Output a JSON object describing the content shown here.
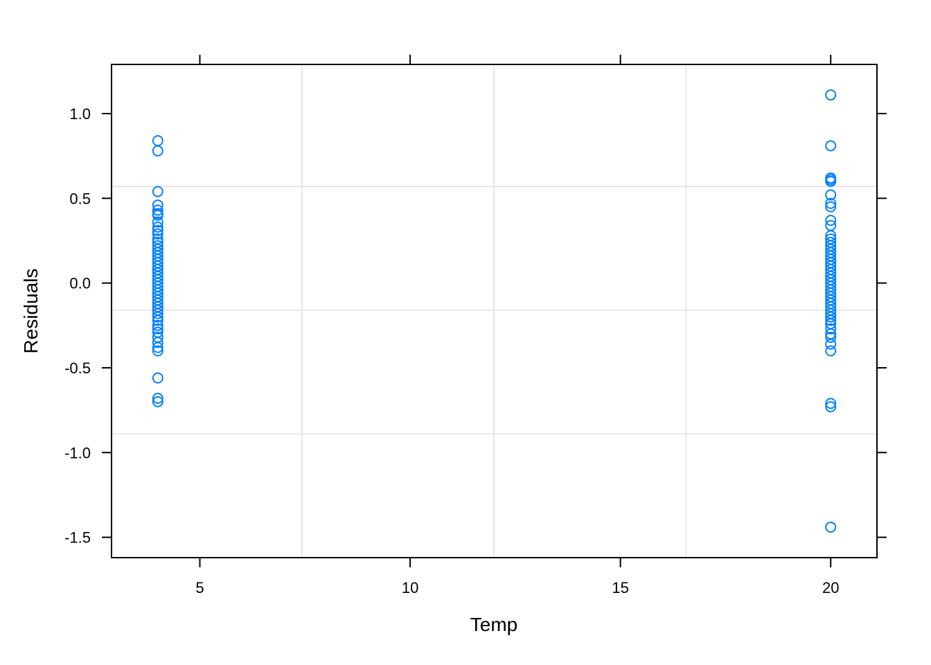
{
  "chart_data": {
    "type": "scatter",
    "title": "",
    "xlabel": "Temp",
    "ylabel": "Residuals",
    "xlim": [
      2.9,
      21.1
    ],
    "ylim": [
      -1.62,
      1.29
    ],
    "x_ticks": [
      5,
      10,
      15,
      20
    ],
    "x_tick_labels": [
      "5",
      "10",
      "15",
      "20"
    ],
    "y_ticks": [
      -1.5,
      -1.0,
      -0.5,
      0.0,
      0.5,
      1.0
    ],
    "y_tick_labels": [
      "-1.5",
      "-1.0",
      "-0.5",
      "0.0",
      "0.5",
      "1.0"
    ],
    "grid": true,
    "grid_lines": {
      "x": [
        7.43,
        11.99,
        16.56
      ],
      "y": [
        -0.89,
        -0.16,
        0.57
      ]
    },
    "marker": "open-circle",
    "colors": {
      "points": "#0080FF",
      "grid": "#E6E6E6",
      "frame": "#000000"
    },
    "series": [
      {
        "x": 4,
        "values": [
          0.84,
          0.78,
          0.54,
          0.46,
          0.43,
          0.41,
          0.4,
          0.36,
          0.33,
          0.31,
          0.29,
          0.26,
          0.24,
          0.22,
          0.2,
          0.18,
          0.16,
          0.14,
          0.12,
          0.1,
          0.08,
          0.06,
          0.04,
          0.02,
          0.0,
          -0.02,
          -0.04,
          -0.06,
          -0.08,
          -0.1,
          -0.12,
          -0.14,
          -0.16,
          -0.18,
          -0.2,
          -0.22,
          -0.25,
          -0.27,
          -0.29,
          -0.32,
          -0.35,
          -0.38,
          -0.4,
          -0.56,
          -0.68,
          -0.7
        ]
      },
      {
        "x": 20,
        "values": [
          1.11,
          0.81,
          0.62,
          0.61,
          0.6,
          0.52,
          0.47,
          0.45,
          0.37,
          0.34,
          0.28,
          0.26,
          0.24,
          0.22,
          0.2,
          0.18,
          0.16,
          0.14,
          0.12,
          0.1,
          0.08,
          0.06,
          0.04,
          0.02,
          0.0,
          -0.02,
          -0.04,
          -0.06,
          -0.08,
          -0.1,
          -0.12,
          -0.14,
          -0.16,
          -0.18,
          -0.2,
          -0.22,
          -0.24,
          -0.27,
          -0.3,
          -0.32,
          -0.36,
          -0.4,
          -0.71,
          -0.73,
          -1.44
        ]
      }
    ]
  }
}
